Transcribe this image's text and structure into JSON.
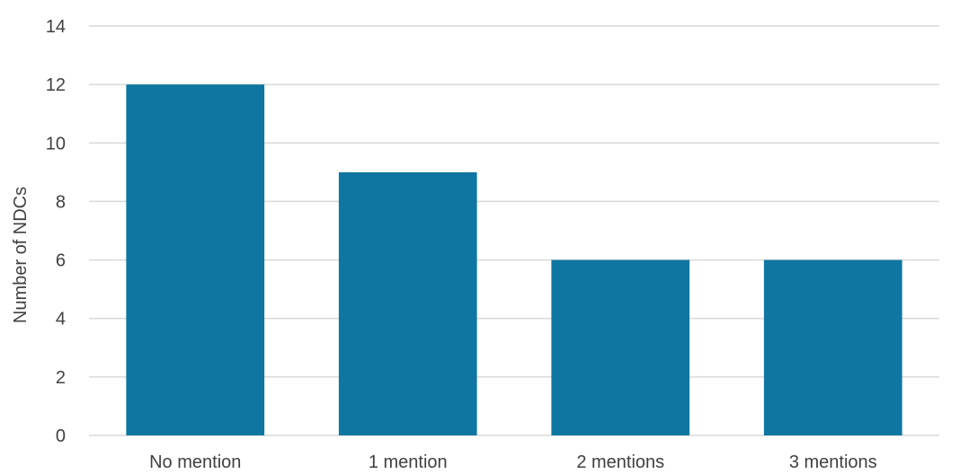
{
  "chart_data": {
    "type": "bar",
    "title": "",
    "xlabel": "",
    "ylabel": "Number of NDCs",
    "categories": [
      "No mention",
      "1 mention",
      "2 mentions",
      "3 mentions"
    ],
    "values": [
      12,
      9,
      6,
      6
    ],
    "ylim": [
      0,
      14
    ],
    "yticks": [
      0,
      2,
      4,
      6,
      8,
      10,
      12,
      14
    ],
    "grid": true,
    "legend": "none",
    "colors": {
      "bar": "#0e76a0",
      "grid": "#d9d9d9",
      "text": "#404040"
    }
  }
}
